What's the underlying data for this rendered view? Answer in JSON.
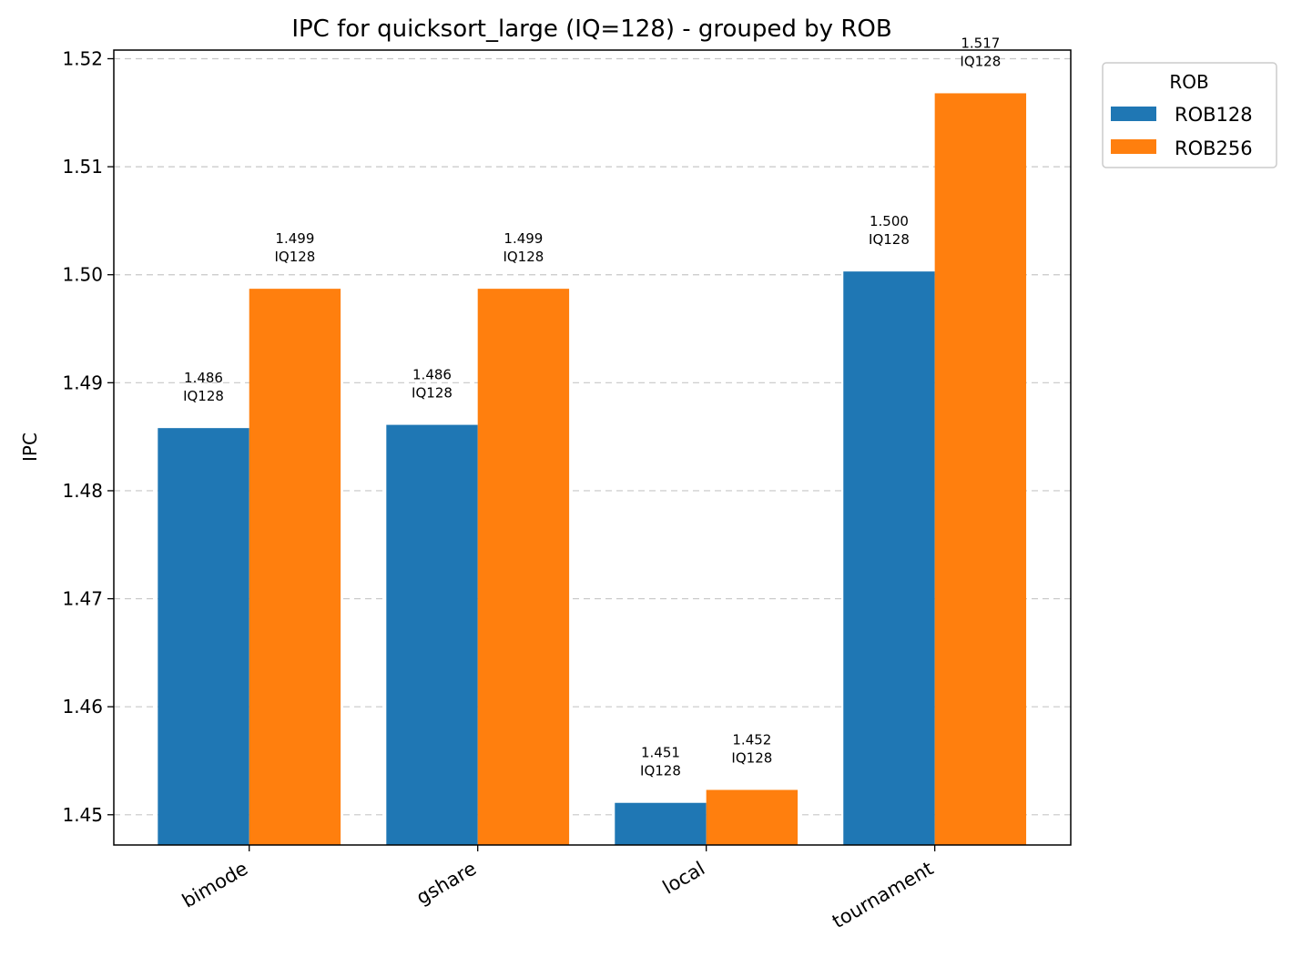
{
  "chart_data": {
    "type": "bar",
    "title": "IPC for quicksort_large (IQ=128) - grouped by ROB",
    "xlabel": "",
    "ylabel": "IPC",
    "categories": [
      "bimode",
      "gshare",
      "local",
      "tournament"
    ],
    "series": [
      {
        "name": "ROB128",
        "color": "#1f77b4",
        "values": [
          1.4858,
          1.4861,
          1.4511,
          1.5003
        ],
        "labels": [
          "1.486\nIQ128",
          "1.486\nIQ128",
          "1.451\nIQ128",
          "1.500\nIQ128"
        ]
      },
      {
        "name": "ROB256",
        "color": "#ff7f0e",
        "values": [
          1.4987,
          1.4987,
          1.4523,
          1.5168
        ],
        "labels": [
          "1.499\nIQ128",
          "1.499\nIQ128",
          "1.452\nIQ128",
          "1.517\nIQ128"
        ]
      }
    ],
    "ylim": [
      1.4472,
      1.5208
    ],
    "yticks": [
      "1.45",
      "1.46",
      "1.47",
      "1.48",
      "1.49",
      "1.50",
      "1.51",
      "1.52"
    ],
    "grid": "y-dashed",
    "legend": {
      "title": "ROB",
      "placement": "outside-top-right"
    }
  }
}
